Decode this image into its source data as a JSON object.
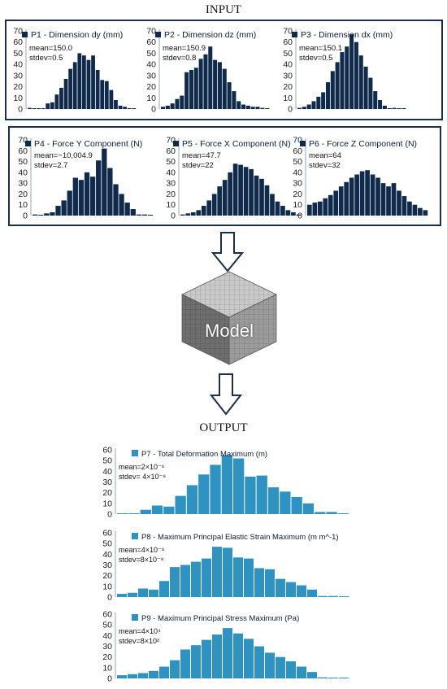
{
  "labels": {
    "input": "INPUT",
    "output": "OUTPUT",
    "model": "Model"
  },
  "colors": {
    "input_bar": "#0f2a4a",
    "output_bar": "#2e93c1",
    "box_border": "#1c2f4a",
    "axis": "#9aa7b6"
  },
  "chart_data": [
    {
      "id": "p1",
      "type": "bar",
      "title": "P1 - Dimension dy (mm)",
      "stats": [
        "mean=150.0",
        "stdev=0.5"
      ],
      "ylim": [
        0,
        70
      ],
      "yticks": [
        0,
        10,
        20,
        30,
        40,
        50,
        60,
        70
      ],
      "values": [
        1,
        0,
        0,
        0,
        5,
        6,
        13,
        19,
        27,
        36,
        42,
        50,
        48,
        44,
        48,
        35,
        26,
        25,
        17,
        8,
        3,
        2,
        0,
        0
      ]
    },
    {
      "id": "p2",
      "type": "bar",
      "title": "P2 - Dimension dz (mm)",
      "stats": [
        "mean=150.9",
        "stdev=0.8"
      ],
      "ylim": [
        0,
        70
      ],
      "yticks": [
        0,
        10,
        20,
        30,
        40,
        50,
        60,
        70
      ],
      "values": [
        2,
        3,
        5,
        9,
        12,
        33,
        35,
        37,
        45,
        49,
        56,
        44,
        42,
        36,
        24,
        16,
        7,
        4,
        3,
        2,
        2,
        1,
        0
      ]
    },
    {
      "id": "p3",
      "type": "bar",
      "title": "P3 - Dimension dx (mm)",
      "stats": [
        "mean=150.1",
        "stdev=0.5"
      ],
      "ylim": [
        0,
        70
      ],
      "yticks": [
        0,
        10,
        20,
        30,
        40,
        50,
        60,
        70
      ],
      "values": [
        1,
        2,
        4,
        7,
        11,
        15,
        24,
        34,
        42,
        51,
        56,
        67,
        60,
        48,
        38,
        28,
        16,
        8,
        3,
        0,
        1,
        0,
        0
      ]
    },
    {
      "id": "p4",
      "type": "bar",
      "title": "P4 - Force Y Component (N)",
      "stats": [
        "mean=−10,004.9",
        "stdev=2.7"
      ],
      "ylim": [
        0,
        70
      ],
      "yticks": [
        0,
        10,
        20,
        30,
        40,
        50,
        60,
        70
      ],
      "values": [
        1,
        0,
        2,
        3,
        9,
        14,
        23,
        35,
        33,
        40,
        36,
        51,
        62,
        44,
        29,
        20,
        12,
        6,
        1,
        1,
        0
      ]
    },
    {
      "id": "p5",
      "type": "bar",
      "title": "P5 - Force X Component (N)",
      "stats": [
        "mean=47.7",
        "stdev=22"
      ],
      "ylim": [
        0,
        70
      ],
      "yticks": [
        0,
        10,
        20,
        30,
        40,
        50,
        60,
        70
      ],
      "values": [
        1,
        2,
        3,
        5,
        9,
        14,
        20,
        27,
        33,
        40,
        48,
        47,
        45,
        43,
        37,
        34,
        28,
        20,
        13,
        9,
        5,
        3,
        1
      ]
    },
    {
      "id": "p6",
      "type": "bar",
      "title": "P6 - Force Z Component (N)",
      "stats": [
        "mean=64",
        "stdev=32"
      ],
      "ylim": [
        0,
        70
      ],
      "yticks": [
        0,
        10,
        20,
        30,
        40,
        50,
        60,
        70
      ],
      "values": [
        10,
        12,
        13,
        16,
        19,
        23,
        27,
        31,
        35,
        38,
        41,
        42,
        38,
        35,
        30,
        27,
        30,
        23,
        18,
        13,
        10,
        7,
        5
      ]
    },
    {
      "id": "p7",
      "type": "bar",
      "title": "P7 - Total Deformation Maximum (m)",
      "stats": [
        "mean=2×10⁻⁶",
        "stdev= 4×10⁻⁸"
      ],
      "ylim": [
        0,
        60
      ],
      "yticks": [
        0,
        10,
        20,
        30,
        40,
        50,
        60
      ],
      "values": [
        0,
        0,
        4,
        8,
        7,
        17,
        27,
        37,
        46,
        55,
        52,
        35,
        36,
        25,
        21,
        16,
        10,
        2,
        2,
        0
      ]
    },
    {
      "id": "p8",
      "type": "bar",
      "title": "P8 - Maximum Principal Elastic Strain Maximum (m m^-1)",
      "stats": [
        "mean=4×10⁻⁶",
        "stdev=8×10⁻⁸"
      ],
      "ylim": [
        0,
        60
      ],
      "yticks": [
        0,
        10,
        20,
        30,
        40,
        50,
        60
      ],
      "values": [
        3,
        4,
        8,
        7,
        15,
        28,
        30,
        33,
        36,
        47,
        46,
        37,
        36,
        27,
        26,
        17,
        14,
        11,
        7,
        1,
        1,
        0
      ]
    },
    {
      "id": "p9",
      "type": "bar",
      "title": "P9 - Maximum Principal Stress Maximum (Pa)",
      "stats": [
        "mean=4×10⁴",
        "stdev=8×10²"
      ],
      "ylim": [
        0,
        60
      ],
      "yticks": [
        0,
        10,
        20,
        30,
        40,
        50,
        60
      ],
      "values": [
        3,
        4,
        5,
        7,
        11,
        17,
        27,
        31,
        36,
        41,
        47,
        42,
        37,
        30,
        24,
        20,
        16,
        11,
        6,
        1,
        0,
        0
      ]
    }
  ]
}
